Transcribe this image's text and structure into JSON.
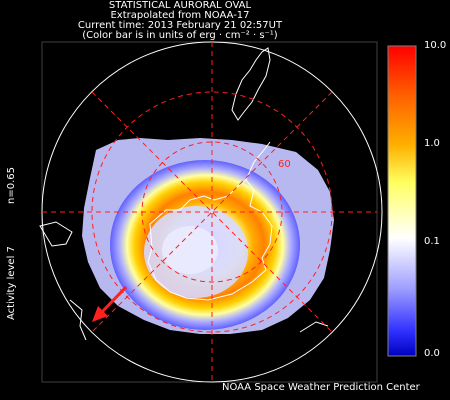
{
  "header": {
    "title": "STATISTICAL AURORAL OVAL",
    "subtitle": "Extrapolated from NOAA-17",
    "current_time": "Current time: 2013 February 21 02:57UT",
    "units_note": "(Color bar is in units of erg · cm⁻² · s⁻¹)"
  },
  "side_labels": {
    "index": "n=0.65",
    "activity": "Activity level 7"
  },
  "colorbar": {
    "tick_labels": [
      "10.0",
      "1.0",
      "0.1",
      "0.0"
    ],
    "colors": [
      "#ff0000",
      "#ff7f00",
      "#ffc800",
      "#ffff80",
      "#ffffff",
      "#a8a8ff",
      "#3a3aff",
      "#0000cc"
    ]
  },
  "map": {
    "latitude_label": "60",
    "grid_color": "#ff2020",
    "arrow_color": "#ff2020"
  },
  "footer": {
    "credit": "NOAA Space Weather Prediction Center"
  }
}
